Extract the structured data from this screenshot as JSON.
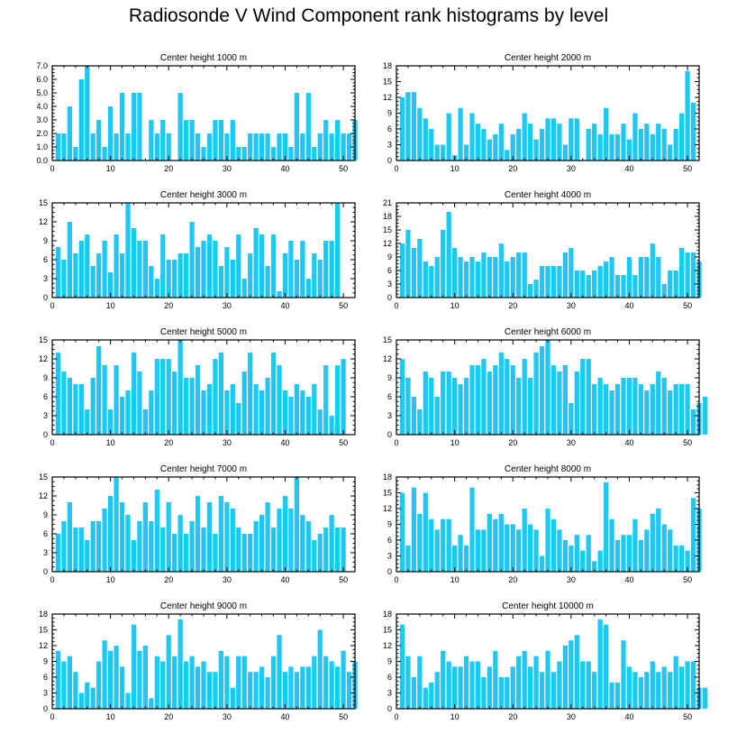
{
  "title": "Radiosonde V Wind Component rank histograms by level",
  "colors": {
    "bar": "#1ec8f5",
    "axis": "#000000",
    "background": "#ffffff"
  },
  "chart_data": [
    {
      "type": "bar",
      "title": "Center height 1000 m",
      "ylim": [
        0,
        7
      ],
      "yticks": [
        "0.0",
        "1.0",
        "2.0",
        "3.0",
        "4.0",
        "5.0",
        "6.0",
        "7.0"
      ],
      "xlim": [
        0,
        52
      ],
      "xticks": [
        0,
        10,
        20,
        30,
        40,
        50
      ],
      "values": [
        2,
        2,
        4,
        1,
        6,
        7,
        2,
        3,
        1,
        4,
        2,
        5,
        2,
        5,
        5,
        0,
        3,
        2,
        3,
        2,
        0,
        5,
        3,
        3,
        2,
        1,
        2,
        3,
        3,
        2,
        3,
        1,
        1,
        2,
        2,
        2,
        2,
        1,
        2,
        2,
        1,
        5,
        2,
        5,
        1,
        2,
        3,
        2,
        3,
        2,
        2,
        3
      ]
    },
    {
      "type": "bar",
      "title": "Center height 2000 m",
      "ylim": [
        0,
        18
      ],
      "yticks": [
        "0",
        "3",
        "6",
        "9",
        "12",
        "15",
        "18"
      ],
      "xlim": [
        0,
        52
      ],
      "xticks": [
        0,
        10,
        20,
        30,
        40,
        50
      ],
      "values": [
        12,
        13,
        13,
        10,
        8,
        6,
        3,
        3,
        9,
        1,
        10,
        3,
        9,
        7,
        6,
        4,
        5,
        7,
        2,
        5,
        6,
        9,
        7,
        4,
        6,
        8,
        8,
        7,
        3,
        8,
        8,
        0,
        6,
        7,
        5,
        10,
        5,
        5,
        7,
        4,
        9,
        6,
        7,
        5,
        7,
        6,
        3,
        6,
        9,
        17,
        11
      ]
    },
    {
      "type": "bar",
      "title": "Center height 3000 m",
      "ylim": [
        0,
        15
      ],
      "yticks": [
        "0",
        "3",
        "6",
        "9",
        "12",
        "15"
      ],
      "xlim": [
        0,
        52
      ],
      "xticks": [
        0,
        10,
        20,
        30,
        40,
        50
      ],
      "values": [
        8,
        6,
        12,
        7,
        9,
        10,
        5,
        7,
        9,
        4,
        10,
        7,
        15,
        11,
        9,
        9,
        5,
        3,
        10,
        6,
        6,
        7,
        7,
        12,
        8,
        9,
        10,
        9,
        5,
        8,
        6,
        10,
        3,
        7,
        11,
        10,
        5,
        10,
        1,
        7,
        9,
        6,
        9,
        3,
        7,
        6,
        9,
        9,
        15
      ]
    },
    {
      "type": "bar",
      "title": "Center height 4000 m",
      "ylim": [
        0,
        21
      ],
      "yticks": [
        "0",
        "3",
        "6",
        "9",
        "12",
        "15",
        "18",
        "21"
      ],
      "xlim": [
        0,
        52
      ],
      "xticks": [
        0,
        10,
        20,
        30,
        40,
        50
      ],
      "values": [
        12,
        15,
        11,
        13,
        8,
        7,
        9,
        15,
        19,
        11,
        9,
        8,
        9,
        8,
        10,
        9,
        9,
        12,
        8,
        9,
        10,
        10,
        3,
        4,
        7,
        7,
        7,
        7,
        10,
        11,
        6,
        6,
        5,
        6,
        7,
        8,
        9,
        5,
        5,
        9,
        5,
        9,
        9,
        12,
        9,
        3,
        6,
        6,
        11,
        10,
        10,
        8
      ]
    },
    {
      "type": "bar",
      "title": "Center height 5000 m",
      "ylim": [
        0,
        15
      ],
      "yticks": [
        "0",
        "3",
        "6",
        "9",
        "12",
        "15"
      ],
      "xlim": [
        0,
        52
      ],
      "xticks": [
        0,
        10,
        20,
        30,
        40,
        50
      ],
      "values": [
        13,
        10,
        9,
        8,
        8,
        4,
        9,
        14,
        11,
        4,
        11,
        6,
        7,
        13,
        10,
        4,
        7,
        12,
        12,
        12,
        10,
        15,
        9,
        9,
        11,
        7,
        8,
        12,
        13,
        7,
        8,
        5,
        10,
        13,
        8,
        7,
        9,
        13,
        11,
        7,
        6,
        8,
        7,
        6,
        8,
        4,
        11,
        3,
        11,
        12
      ]
    },
    {
      "type": "bar",
      "title": "Center height 6000 m",
      "ylim": [
        0,
        15
      ],
      "yticks": [
        "0",
        "3",
        "6",
        "9",
        "12",
        "15"
      ],
      "xlim": [
        0,
        52
      ],
      "xticks": [
        0,
        10,
        20,
        30,
        40,
        50
      ],
      "values": [
        12,
        9,
        6,
        4,
        10,
        9,
        6,
        10,
        10,
        9,
        8,
        9,
        11,
        11,
        12,
        10,
        11,
        13,
        12,
        11,
        9,
        12,
        9,
        13,
        14,
        15,
        11,
        10,
        11,
        5,
        10,
        12,
        12,
        8,
        9,
        8,
        7,
        8,
        9,
        9,
        9,
        8,
        7,
        8,
        10,
        9,
        7,
        8,
        8,
        8,
        4,
        5,
        6
      ]
    },
    {
      "type": "bar",
      "title": "Center height 7000 m",
      "ylim": [
        0,
        15
      ],
      "yticks": [
        "0",
        "3",
        "6",
        "9",
        "12",
        "15"
      ],
      "xlim": [
        0,
        52
      ],
      "xticks": [
        0,
        10,
        20,
        30,
        40,
        50
      ],
      "values": [
        6,
        8,
        11,
        7,
        7,
        5,
        8,
        8,
        10,
        12,
        15,
        11,
        9,
        5,
        8,
        11,
        8,
        13,
        7,
        11,
        6,
        9,
        6,
        8,
        12,
        7,
        11,
        6,
        12,
        11,
        10,
        7,
        6,
        6,
        8,
        9,
        11,
        7,
        10,
        12,
        10,
        15,
        9,
        8,
        5,
        6,
        7,
        9,
        7,
        7
      ]
    },
    {
      "type": "bar",
      "title": "Center height 8000 m",
      "ylim": [
        0,
        18
      ],
      "yticks": [
        "0",
        "3",
        "6",
        "9",
        "12",
        "15",
        "18"
      ],
      "xlim": [
        0,
        52
      ],
      "xticks": [
        0,
        10,
        20,
        30,
        40,
        50
      ],
      "values": [
        15,
        5,
        16,
        11,
        15,
        10,
        8,
        10,
        10,
        5,
        7,
        5,
        16,
        8,
        8,
        11,
        10,
        11,
        9,
        9,
        8,
        12,
        9,
        8,
        3,
        12,
        10,
        8,
        6,
        5,
        7,
        4,
        7,
        2,
        4,
        17,
        10,
        6,
        7,
        7,
        10,
        6,
        8,
        11,
        12,
        9,
        8,
        5,
        5,
        4,
        14,
        12
      ]
    },
    {
      "type": "bar",
      "title": "Center height 9000 m",
      "ylim": [
        0,
        18
      ],
      "yticks": [
        "0",
        "3",
        "6",
        "9",
        "12",
        "15",
        "18"
      ],
      "xlim": [
        0,
        52
      ],
      "xticks": [
        0,
        10,
        20,
        30,
        40,
        50
      ],
      "values": [
        11,
        9,
        10,
        7,
        3,
        5,
        4,
        9,
        13,
        11,
        12,
        8,
        3,
        16,
        11,
        12,
        2,
        10,
        9,
        14,
        10,
        17,
        9,
        10,
        8,
        9,
        7,
        7,
        11,
        10,
        4,
        10,
        10,
        7,
        7,
        8,
        6,
        10,
        14,
        7,
        8,
        7,
        8,
        8,
        10,
        15,
        10,
        9,
        8,
        11,
        7,
        9
      ]
    },
    {
      "type": "bar",
      "title": "Center height 10000 m",
      "ylim": [
        0,
        18
      ],
      "yticks": [
        "0",
        "3",
        "6",
        "9",
        "12",
        "15",
        "18"
      ],
      "xlim": [
        0,
        52
      ],
      "xticks": [
        0,
        10,
        20,
        30,
        40,
        50
      ],
      "values": [
        16,
        10,
        6,
        10,
        4,
        5,
        7,
        11,
        9,
        8,
        8,
        10,
        9,
        9,
        6,
        8,
        11,
        6,
        6,
        8,
        10,
        11,
        8,
        10,
        7,
        11,
        7,
        9,
        12,
        13,
        14,
        9,
        9,
        7,
        17,
        16,
        5,
        5,
        13,
        8,
        7,
        6,
        7,
        9,
        7,
        8,
        7,
        10,
        8,
        9,
        9,
        4,
        4
      ]
    }
  ]
}
